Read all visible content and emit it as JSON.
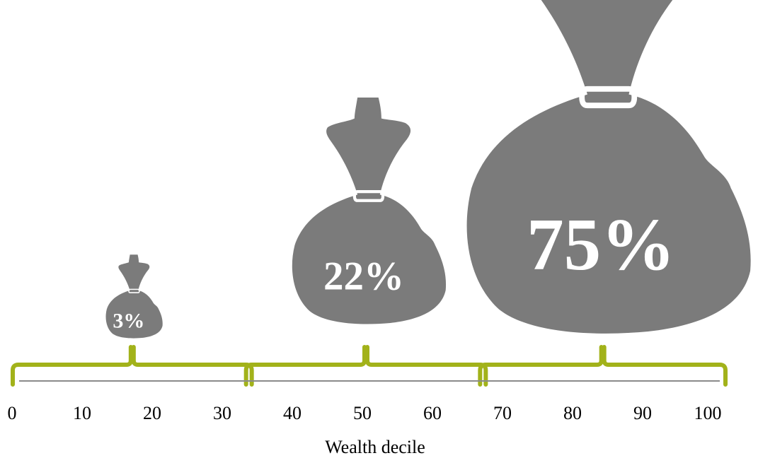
{
  "chart_data": {
    "type": "bar",
    "title": "",
    "xlabel": "Wealth decile",
    "ylabel": "",
    "xlim": [
      0,
      100
    ],
    "x_ticks": [
      0,
      10,
      20,
      30,
      40,
      50,
      60,
      70,
      80,
      90,
      100
    ],
    "groups": [
      {
        "range": [
          0,
          33.3
        ],
        "value": 3,
        "label": "3%"
      },
      {
        "range": [
          33.3,
          66.7
        ],
        "value": 22,
        "label": "22%"
      },
      {
        "range": [
          66.7,
          100
        ],
        "value": 75,
        "label": "75%"
      }
    ],
    "colors": {
      "bag": "#7b7b7b",
      "brace": "#a2b21a",
      "axis": "#8a8a8a"
    }
  }
}
